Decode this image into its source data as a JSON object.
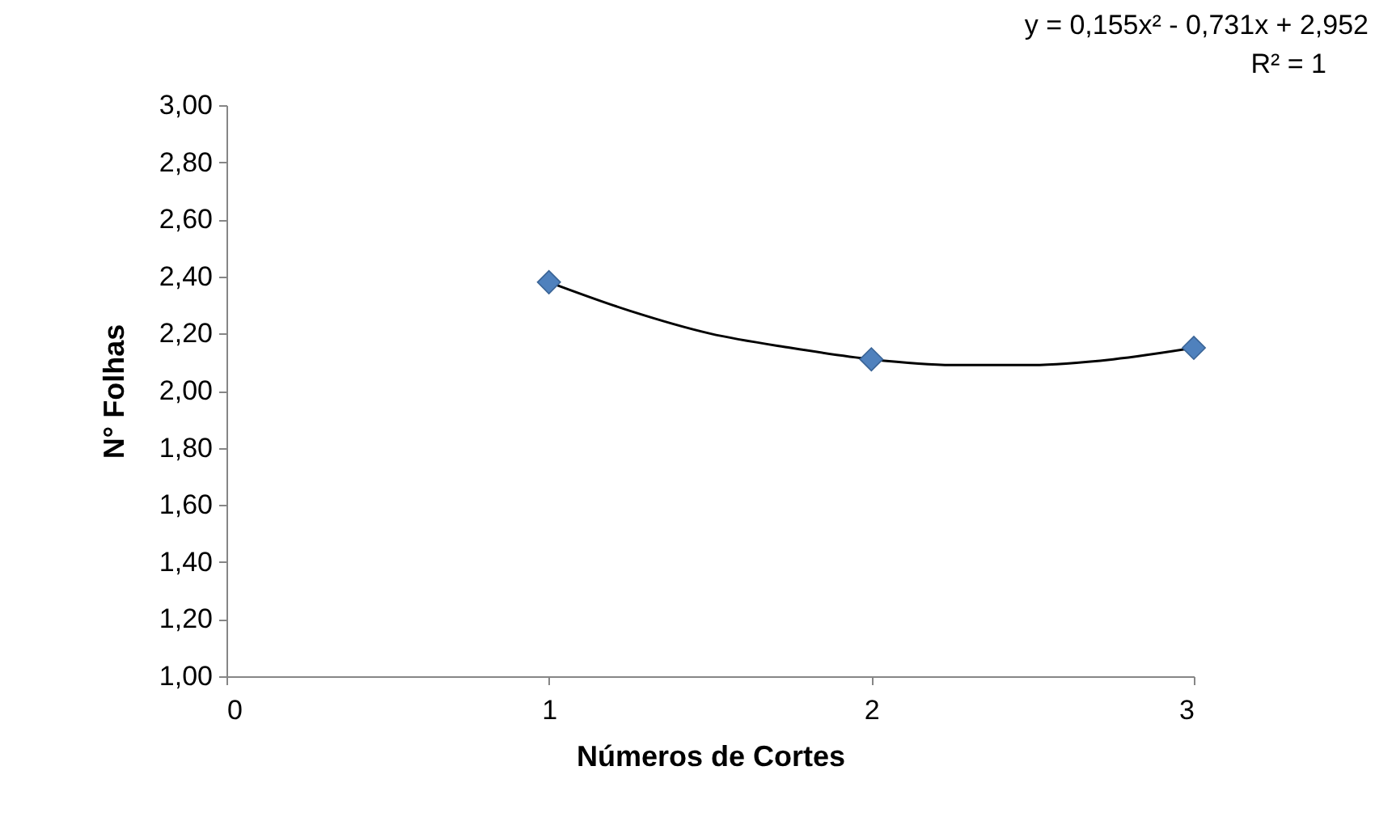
{
  "chart_data": {
    "type": "scatter",
    "xlabel": "Números de Cortes",
    "ylabel": "N° Folhas",
    "annotations": [
      "y = 0,155x² - 0,731x + 2,952",
      "R² = 1"
    ],
    "marker": "diamond",
    "series": [
      {
        "color": "#4f81bd",
        "x": [
          1,
          2,
          3
        ],
        "values": [
          2.38,
          2.11,
          2.15
        ]
      },
      {
        "type": "line",
        "marker": "none",
        "color": "#000000",
        "x": [
          1,
          1.25,
          1.5,
          1.75,
          2,
          2.25,
          2.5,
          2.75,
          3
        ],
        "values": [
          2.38,
          2.28,
          2.2,
          2.15,
          2.11,
          2.09,
          2.09,
          2.11,
          2.15
        ]
      }
    ],
    "xlim": [
      0,
      3
    ],
    "xticks": [
      0,
      1,
      2,
      3
    ],
    "ylim": [
      1,
      3
    ],
    "yticks": [
      {
        "value": 1,
        "label": "1,00"
      },
      {
        "value": 1.2,
        "label": "1,20"
      },
      {
        "value": 1.4,
        "label": "1,40"
      },
      {
        "value": 1.6,
        "label": "1,60"
      },
      {
        "value": 1.8,
        "label": "1,80"
      },
      {
        "value": 2,
        "label": "2,00"
      },
      {
        "value": 2.2,
        "label": "2,20"
      },
      {
        "value": 2.4,
        "label": "2,40"
      },
      {
        "value": 2.6,
        "label": "2,60"
      },
      {
        "value": 2.8,
        "label": "2,80"
      },
      {
        "value": 3,
        "label": "3,00"
      }
    ],
    "grid": false
  }
}
